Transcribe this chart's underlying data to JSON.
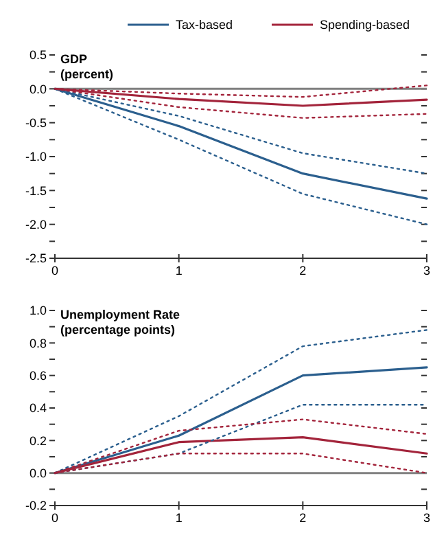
{
  "chart_data": [
    {
      "type": "line",
      "title": "GDP",
      "subtitle": "(percent)",
      "x": [
        0,
        1,
        2,
        3
      ],
      "xlim": [
        0,
        3
      ],
      "xticks": [
        0,
        1,
        2,
        3
      ],
      "ylim": [
        -2.5,
        0.5
      ],
      "yticks": [
        {
          "value": -2.5,
          "label": "-2.5"
        },
        {
          "value": -2.25,
          "label": null
        },
        {
          "value": -2,
          "label": "-2.0"
        },
        {
          "value": -1.75,
          "label": null
        },
        {
          "value": -1.5,
          "label": "-1.5"
        },
        {
          "value": -1.25,
          "label": null
        },
        {
          "value": -1,
          "label": "-1.0"
        },
        {
          "value": -0.75,
          "label": null
        },
        {
          "value": -0.5,
          "label": "-0.5"
        },
        {
          "value": -0.25,
          "label": null
        },
        {
          "value": 0,
          "label": "0.0"
        },
        {
          "value": 0.25,
          "label": null
        },
        {
          "value": 0.5,
          "label": "0.5"
        }
      ],
      "legend": "top",
      "grid": false,
      "ref_lines": [
        {
          "axis": "y",
          "value": 0,
          "color": "#808080"
        }
      ],
      "series": [
        {
          "name": "Tax-based",
          "color": "#2b5f8e",
          "line_style": "solid",
          "values": [
            0,
            -0.55,
            -1.25,
            -1.62
          ]
        },
        {
          "name": "Spending-based",
          "color": "#a3243b",
          "line_style": "solid",
          "values": [
            0,
            -0.15,
            -0.25,
            -0.16
          ]
        },
        {
          "color": "#2b5f8e",
          "line_style": "dotted",
          "values": [
            0,
            -0.4,
            -0.95,
            -1.25
          ]
        },
        {
          "color": "#2b5f8e",
          "line_style": "dotted",
          "values": [
            0,
            -0.75,
            -1.55,
            -2.0
          ]
        },
        {
          "color": "#a3243b",
          "line_style": "dotted",
          "values": [
            0,
            -0.07,
            -0.12,
            0.05
          ]
        },
        {
          "color": "#a3243b",
          "line_style": "dotted",
          "values": [
            0,
            -0.27,
            -0.43,
            -0.37
          ]
        }
      ]
    },
    {
      "type": "line",
      "title": "Unemployment Rate",
      "subtitle": "(percentage points)",
      "x": [
        0,
        1,
        2,
        3
      ],
      "xlim": [
        0,
        3
      ],
      "xticks": [
        0,
        1,
        2,
        3
      ],
      "ylim": [
        -0.2,
        1.0
      ],
      "yticks": [
        {
          "value": -0.2,
          "label": "-0.2"
        },
        {
          "value": -0.1,
          "label": null
        },
        {
          "value": 0,
          "label": "0.0"
        },
        {
          "value": 0.1,
          "label": null
        },
        {
          "value": 0.2,
          "label": "0.2"
        },
        {
          "value": 0.3,
          "label": null
        },
        {
          "value": 0.4,
          "label": "0.4"
        },
        {
          "value": 0.5,
          "label": null
        },
        {
          "value": 0.6,
          "label": "0.6"
        },
        {
          "value": 0.7,
          "label": null
        },
        {
          "value": 0.8,
          "label": "0.8"
        },
        {
          "value": 0.9,
          "label": null
        },
        {
          "value": 1.0,
          "label": "1.0"
        }
      ],
      "grid": false,
      "ref_lines": [
        {
          "axis": "y",
          "value": 0,
          "color": "#808080"
        }
      ],
      "series": [
        {
          "color": "#2b5f8e",
          "line_style": "solid",
          "values": [
            0,
            0.23,
            0.6,
            0.65
          ]
        },
        {
          "color": "#a3243b",
          "line_style": "solid",
          "values": [
            0,
            0.19,
            0.22,
            0.12
          ]
        },
        {
          "color": "#2b5f8e",
          "line_style": "dotted",
          "values": [
            0,
            0.35,
            0.78,
            0.88
          ]
        },
        {
          "color": "#2b5f8e",
          "line_style": "dotted",
          "values": [
            0,
            0.12,
            0.42,
            0.42
          ]
        },
        {
          "color": "#a3243b",
          "line_style": "dotted",
          "values": [
            0,
            0.26,
            0.33,
            0.24
          ]
        },
        {
          "color": "#a3243b",
          "line_style": "dotted",
          "values": [
            0,
            0.12,
            0.12,
            0.0
          ]
        }
      ]
    }
  ]
}
